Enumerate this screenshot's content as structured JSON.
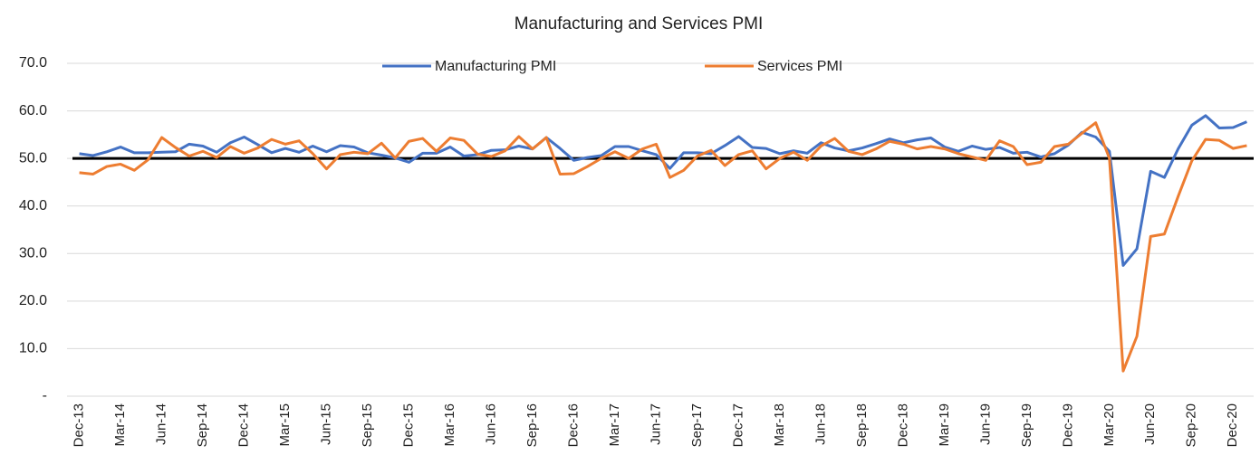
{
  "chart_data": {
    "type": "line",
    "title": "Manufacturing and Services PMI",
    "categories": [
      "Dec-13",
      null,
      null,
      "Mar-14",
      null,
      null,
      "Jun-14",
      null,
      null,
      "Sep-14",
      null,
      null,
      "Dec-14",
      null,
      null,
      "Mar-15",
      null,
      null,
      "Jun-15",
      null,
      null,
      "Sep-15",
      null,
      null,
      "Dec-15",
      null,
      null,
      "Mar-16",
      null,
      null,
      "Jun-16",
      null,
      null,
      "Sep-16",
      null,
      null,
      "Dec-16",
      null,
      null,
      "Mar-17",
      null,
      null,
      "Jun-17",
      null,
      null,
      "Sep-17",
      null,
      null,
      "Dec-17",
      null,
      null,
      "Mar-18",
      null,
      null,
      "Jun-18",
      null,
      null,
      "Sep-18",
      null,
      null,
      "Dec-18",
      null,
      null,
      "Mar-19",
      null,
      null,
      "Jun-19",
      null,
      null,
      "Sep-19",
      null,
      null,
      "Dec-19",
      null,
      null,
      "Mar-20",
      null,
      null,
      "Jun-20",
      null,
      null,
      "Sep-20",
      null,
      null,
      "Dec-20",
      null
    ],
    "series": [
      {
        "name": "Manufacturing PMI",
        "color": "#4472c4",
        "values": [
          51.0,
          50.6,
          51.4,
          52.4,
          51.2,
          51.2,
          51.3,
          51.4,
          53.0,
          52.6,
          51.3,
          53.3,
          54.5,
          52.9,
          51.2,
          52.1,
          51.3,
          52.6,
          51.4,
          52.7,
          52.4,
          51.2,
          50.7,
          50.1,
          49.2,
          51.1,
          51.1,
          52.4,
          50.5,
          50.8,
          51.7,
          51.8,
          52.6,
          52.0,
          54.4,
          52.1,
          49.6,
          50.2,
          50.6,
          52.5,
          52.5,
          51.6,
          50.8,
          47.9,
          51.2,
          51.2,
          51.0,
          52.7,
          54.6,
          52.3,
          52.1,
          51.0,
          51.6,
          51.1,
          53.3,
          52.2,
          51.6,
          52.2,
          53.1,
          54.1,
          53.3,
          53.9,
          54.3,
          52.4,
          51.5,
          52.6,
          51.9,
          52.3,
          51.1,
          51.3,
          50.3,
          51.0,
          52.8,
          55.5,
          54.5,
          51.5,
          27.5,
          31.0,
          47.3,
          46.0,
          52.0,
          57.0,
          59.0,
          56.4,
          56.5,
          57.7
        ]
      },
      {
        "name": "Services PMI",
        "color": "#ed7d31",
        "values": [
          47.0,
          46.7,
          48.3,
          48.8,
          47.5,
          49.7,
          54.4,
          52.3,
          50.5,
          51.5,
          50.2,
          52.5,
          51.1,
          52.2,
          54.0,
          53.0,
          53.7,
          51.0,
          47.8,
          50.8,
          51.3,
          51.0,
          53.2,
          50.1,
          53.6,
          54.2,
          51.5,
          54.3,
          53.8,
          50.9,
          50.4,
          51.6,
          54.6,
          52.0,
          54.4,
          46.7,
          46.8,
          48.3,
          50.0,
          51.4,
          50.0,
          52.0,
          53.0,
          46.0,
          47.5,
          50.5,
          51.7,
          48.5,
          50.8,
          51.6,
          47.8,
          50.0,
          51.3,
          49.6,
          52.6,
          54.2,
          51.5,
          50.8,
          52.0,
          53.6,
          53.0,
          52.0,
          52.5,
          52.0,
          51.0,
          50.3,
          49.6,
          53.7,
          52.5,
          48.7,
          49.2,
          52.5,
          53.0,
          55.3,
          57.5,
          50.0,
          5.3,
          12.6,
          33.6,
          34.1,
          42.0,
          49.5,
          54.0,
          53.8,
          52.1,
          52.7
        ]
      }
    ],
    "ylim": [
      0,
      70
    ],
    "yticks": [
      {
        "value": 0,
        "label": "-"
      },
      {
        "value": 10,
        "label": "10.0"
      },
      {
        "value": 20,
        "label": "20.0"
      },
      {
        "value": 30,
        "label": "30.0"
      },
      {
        "value": 40,
        "label": "40.0"
      },
      {
        "value": 50,
        "label": "50.0"
      },
      {
        "value": 60,
        "label": "60.0"
      },
      {
        "value": 70,
        "label": "70.0"
      }
    ],
    "grid": true,
    "reference_line": 50,
    "legend": "top"
  }
}
